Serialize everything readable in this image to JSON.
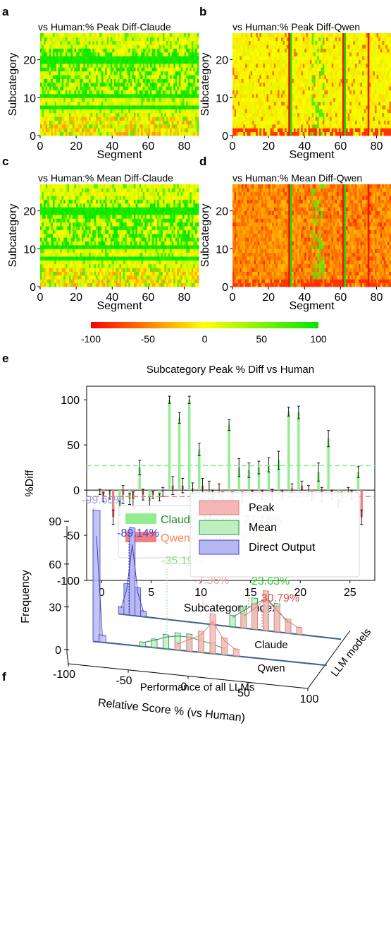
{
  "panels": {
    "a": {
      "letter": "a",
      "title": "vs Human:% Peak Diff-Claude",
      "xlabel": "Segment",
      "ylabel": "Subcategory",
      "xticks": [
        "0",
        "20",
        "40",
        "60",
        "80"
      ],
      "yticks": [
        "0",
        "10",
        "20"
      ]
    },
    "b": {
      "letter": "b",
      "title": "vs Human:% Peak Diff-Qwen",
      "xlabel": "Segment",
      "ylabel": "Subcategory",
      "xticks": [
        "0",
        "20",
        "40",
        "60",
        "80"
      ],
      "yticks": [
        "0",
        "10",
        "20"
      ]
    },
    "c": {
      "letter": "c",
      "title": "vs Human:% Mean Diff-Claude",
      "xlabel": "Segment",
      "ylabel": "Subcategory",
      "xticks": [
        "0",
        "20",
        "40",
        "60",
        "80"
      ],
      "yticks": [
        "0",
        "10",
        "20"
      ]
    },
    "d": {
      "letter": "d",
      "title": "vs Human:% Mean Diff-Qwen",
      "xlabel": "Segment",
      "ylabel": "Subcategory",
      "xticks": [
        "0",
        "20",
        "40",
        "60",
        "80"
      ],
      "yticks": [
        "0",
        "10",
        "20"
      ]
    },
    "e": {
      "letter": "e"
    },
    "f": {
      "letter": "f"
    }
  },
  "colorbar": {
    "ticks": [
      "-100",
      "-50",
      "0",
      "50",
      "100"
    ],
    "colors": [
      "#ff0000",
      "#ffff00",
      "#00e600"
    ]
  },
  "chart_data": [
    {
      "type": "heatmap",
      "panel": "a",
      "title": "vs Human:% Peak Diff-Claude",
      "xlabel": "Segment",
      "ylabel": "Subcategory",
      "xlim": [
        0,
        88
      ],
      "ylim": [
        0,
        27
      ],
      "dominant_color": "#ffff00",
      "note_rows_mostly_green": [
        7,
        10,
        19,
        20
      ]
    },
    {
      "type": "heatmap",
      "panel": "b",
      "title": "vs Human:% Peak Diff-Qwen",
      "xlabel": "Segment",
      "ylabel": "Subcategory",
      "xlim": [
        0,
        88
      ],
      "ylim": [
        0,
        27
      ],
      "dominant_color": "#ffff00",
      "note_cols_green": [
        32,
        62,
        88
      ],
      "note_cols_red": [
        31,
        61,
        75
      ]
    },
    {
      "type": "heatmap",
      "panel": "c",
      "title": "vs Human:% Mean Diff-Claude",
      "xlabel": "Segment",
      "ylabel": "Subcategory",
      "xlim": [
        0,
        88
      ],
      "ylim": [
        0,
        27
      ],
      "dominant_color": "#ffff00",
      "note_rows_mostly_green": [
        7,
        10,
        19,
        20
      ]
    },
    {
      "type": "heatmap",
      "panel": "d",
      "title": "vs Human:% Mean Diff-Qwen",
      "xlabel": "Segment",
      "ylabel": "Subcategory",
      "xlim": [
        0,
        88
      ],
      "ylim": [
        0,
        27
      ],
      "dominant_color": "#ff8c5a",
      "note_cols_green": [
        32,
        62,
        88
      ],
      "note_cols_red": [
        31,
        61,
        75
      ]
    },
    {
      "type": "bar",
      "panel": "e",
      "title": "Subcategory Peak % Diff vs Human",
      "xlabel": "Subcategory Index",
      "ylabel": "%Diff",
      "xlim": [
        -1.5,
        27.5
      ],
      "ylim": [
        -100,
        115
      ],
      "xticks": [
        "0",
        "5",
        "10",
        "15",
        "20",
        "25"
      ],
      "yticks": [
        "-100",
        "-50",
        "0",
        "50",
        "100"
      ],
      "categories": [
        0,
        1,
        2,
        3,
        4,
        5,
        6,
        7,
        8,
        9,
        10,
        11,
        12,
        13,
        14,
        15,
        16,
        17,
        18,
        19,
        20,
        21,
        22,
        23,
        24,
        25,
        26
      ],
      "series": [
        {
          "name": "Claude",
          "color": "#90ee90",
          "values": [
            -2,
            -5,
            -20,
            -10,
            25,
            -12,
            -8,
            100,
            80,
            100,
            45,
            0,
            0,
            72,
            25,
            22,
            25,
            28,
            33,
            87,
            86,
            0,
            20,
            57,
            -15,
            0,
            20
          ],
          "errors": [
            3,
            5,
            8,
            6,
            8,
            5,
            4,
            4,
            6,
            4,
            7,
            10,
            7,
            6,
            10,
            8,
            7,
            8,
            10,
            5,
            7,
            5,
            10,
            9,
            4,
            3,
            6
          ]
        },
        {
          "name": "Qwen",
          "color": "#f08080",
          "values": [
            -8,
            -30,
            -5,
            -10,
            -5,
            -5,
            -2,
            5,
            5,
            2,
            5,
            -5,
            -8,
            -8,
            -8,
            -5,
            -5,
            -5,
            -5,
            2,
            5,
            -8,
            -5,
            -5,
            -8,
            -5,
            -30
          ],
          "errors": [
            5,
            8,
            10,
            8,
            6,
            4,
            5,
            10,
            8,
            6,
            8,
            5,
            6,
            6,
            5,
            5,
            5,
            6,
            5,
            5,
            5,
            4,
            8,
            5,
            5,
            5,
            8
          ]
        }
      ],
      "mean_lines": [
        {
          "name": "Claude",
          "value": 27.18,
          "color": "#90ee90"
        },
        {
          "name": "Qwen",
          "value": -7.12,
          "color": "#f08080"
        }
      ],
      "legend": {
        "position": "lower-left",
        "entries": [
          {
            "text": "Claude, Mean = 27.18%",
            "color": "#90ee90",
            "text_color": "#228b22"
          },
          {
            "text": "Qwen, Mean =  -7.12%",
            "color": "#f08080",
            "text_color": "#ff7f50"
          }
        ]
      }
    },
    {
      "type": "histogram_3d",
      "panel": "f",
      "title": "Performance of all LLMs",
      "xlabel": "Relative Score % (vs Human)",
      "ylabel": "Frequency",
      "zlabel": "LLM models",
      "xticks": [
        "-100",
        "-50",
        "0",
        "50",
        "100"
      ],
      "yticks": [
        "0",
        "30",
        "60",
        "90"
      ],
      "depth_labels": [
        "Qwen",
        "Claude"
      ],
      "legend": [
        {
          "name": "Peak",
          "color": "#f4b6b6"
        },
        {
          "name": "Mean",
          "color": "#bdf0bd"
        },
        {
          "name": "Direct Output",
          "color": "#b6b6f0"
        }
      ],
      "annotations": [
        {
          "text": "-99.60%",
          "color": "#9999e6"
        },
        {
          "text": "-89.14%",
          "color": "#4040d0"
        },
        {
          "text": "-35.19%",
          "color": "#8ee08e"
        },
        {
          "text": "-7.36%",
          "color": "#f0a0a0"
        },
        {
          "text": "23.63%",
          "color": "#33cc33"
        },
        {
          "text": "30.79%",
          "color": "#e05050"
        }
      ],
      "series": [
        {
          "name": "Direct Output",
          "model": "Qwen",
          "peak_value": -99.6,
          "bins": [
            -100,
            -95
          ],
          "frequencies": [
            93,
            5
          ]
        },
        {
          "name": "Direct Output",
          "model": "Claude",
          "peak_value": -89.14,
          "bins": [
            -100,
            -95,
            -90,
            -85,
            -80
          ],
          "frequencies": [
            5,
            22,
            62,
            20,
            4
          ]
        },
        {
          "name": "Mean",
          "model": "Qwen",
          "peak_value": -35.19,
          "bins": [
            -60,
            -50,
            -40,
            -30,
            -20,
            -10,
            0,
            10
          ],
          "frequencies": [
            3,
            6,
            10,
            12,
            12,
            10,
            8,
            5
          ]
        },
        {
          "name": "Peak",
          "model": "Qwen",
          "peak_value": -7.36,
          "bins": [
            -30,
            -20,
            -10,
            0,
            10,
            20
          ],
          "frequencies": [
            5,
            10,
            15,
            28,
            12,
            5
          ]
        },
        {
          "name": "Mean",
          "model": "Claude",
          "peak_value": 23.63,
          "bins": [
            0,
            10,
            20,
            30,
            40,
            50
          ],
          "frequencies": [
            8,
            15,
            22,
            28,
            20,
            8
          ]
        },
        {
          "name": "Peak",
          "model": "Claude",
          "peak_value": 30.79,
          "bins": [
            10,
            20,
            30,
            40,
            50,
            60
          ],
          "frequencies": [
            10,
            18,
            28,
            18,
            10,
            5
          ]
        }
      ]
    }
  ]
}
